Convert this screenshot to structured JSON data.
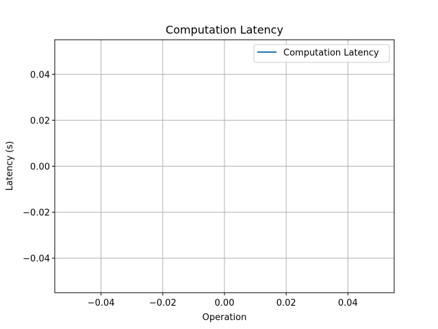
{
  "chart_data": {
    "type": "line",
    "title": "Computation Latency",
    "xlabel": "Operation",
    "ylabel": "Latency (s)",
    "xlim": [
      -0.055,
      0.055
    ],
    "ylim": [
      -0.055,
      0.055
    ],
    "x_ticks": [
      -0.04,
      -0.02,
      0.0,
      0.02,
      0.04
    ],
    "x_tick_labels": [
      "−0.04",
      "−0.02",
      "0.00",
      "0.02",
      "0.04"
    ],
    "y_ticks": [
      -0.04,
      -0.02,
      0.0,
      0.02,
      0.04
    ],
    "y_tick_labels": [
      "−0.04",
      "−0.02",
      "0.00",
      "0.02",
      "0.04"
    ],
    "grid": true,
    "legend_position": "upper-right",
    "series": [
      {
        "name": "Computation Latency",
        "color": "#1f77b4",
        "x": [],
        "y": []
      }
    ]
  }
}
